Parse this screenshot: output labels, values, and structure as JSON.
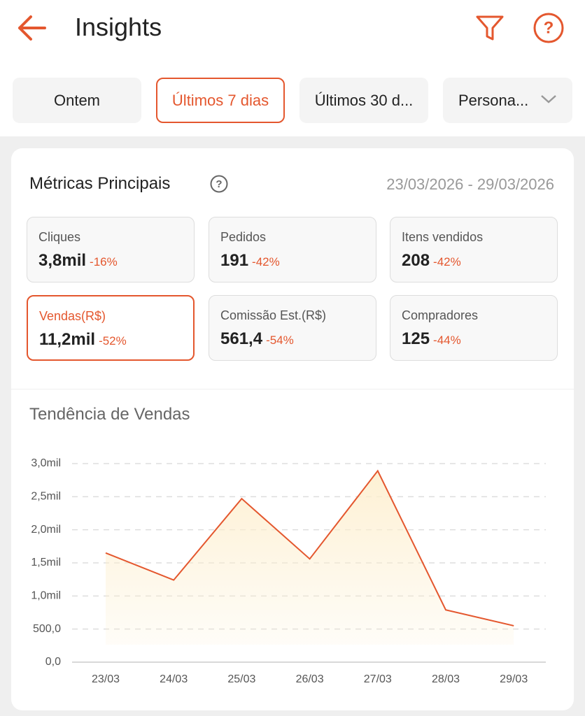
{
  "header": {
    "title": "Insights"
  },
  "tabs": [
    "Ontem",
    "Últimos 7 dias",
    "Últimos 30 d...",
    "Persona..."
  ],
  "metrics": {
    "title": "Métricas Principais",
    "date_range": "23/03/2026 - 29/03/2026",
    "items": [
      {
        "label": "Cliques",
        "value": "3,8mil",
        "change": "-16%"
      },
      {
        "label": "Pedidos",
        "value": "191",
        "change": "-42%"
      },
      {
        "label": "Itens vendidos",
        "value": "208",
        "change": "-42%"
      },
      {
        "label": "Vendas(R$)",
        "value": "11,2mil",
        "change": "-52%"
      },
      {
        "label": "Comissão Est.(R$)",
        "value": "561,4",
        "change": "-54%"
      },
      {
        "label": "Compradores",
        "value": "125",
        "change": "-44%"
      }
    ]
  },
  "chart_data": {
    "type": "line",
    "title": "Tendência de Vendas",
    "categories": [
      "23/03",
      "24/03",
      "25/03",
      "26/03",
      "27/03",
      "28/03",
      "29/03"
    ],
    "values": [
      1650,
      1240,
      2470,
      1560,
      2890,
      790,
      550
    ],
    "color": "#e4572e",
    "area_color": "#fdefcf",
    "ylim": [
      0,
      3000
    ],
    "yticks": [
      {
        "value": 0,
        "label": "0,0"
      },
      {
        "value": 500,
        "label": "500,0"
      },
      {
        "value": 1000,
        "label": "1,0mil"
      },
      {
        "value": 1500,
        "label": "1,5mil"
      },
      {
        "value": 2000,
        "label": "2,0mil"
      },
      {
        "value": 2500,
        "label": "2,5mil"
      },
      {
        "value": 3000,
        "label": "3,0mil"
      }
    ],
    "grid": true
  }
}
